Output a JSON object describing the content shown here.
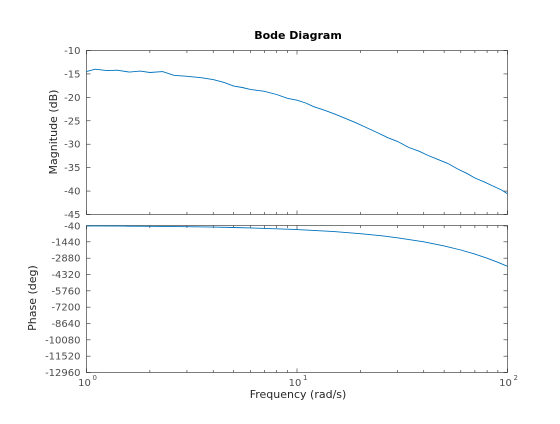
{
  "chart_data": {
    "type": "line",
    "title": "Bode Diagram",
    "xlabel": "Frequency  (rad/s)",
    "xscale": "log",
    "xlim": [
      1,
      100
    ],
    "x_ticks": [
      1,
      10,
      100
    ],
    "x_tick_labels": [
      [
        "10",
        "0"
      ],
      [
        "10",
        "1"
      ],
      [
        "10",
        "2"
      ]
    ],
    "line_color": "#0072bd",
    "grid": false,
    "subplots": [
      {
        "name": "magnitude",
        "ylabel": "Magnitude (dB)",
        "ylim": [
          -45,
          -10
        ],
        "yticks": [
          -10,
          -15,
          -20,
          -25,
          -30,
          -35,
          -40,
          -45
        ],
        "series": [
          {
            "x": [
              1,
              1.1,
              1.25,
              1.4,
              1.6,
              1.8,
              2,
              2.3,
              2.6,
              3,
              3.5,
              4,
              4.5,
              5,
              5.5,
              6,
              7,
              8,
              9,
              10,
              11,
              12,
              13,
              14,
              15,
              17,
              19,
              21,
              24,
              27,
              30,
              34,
              38,
              42,
              47,
              52,
              58,
              64,
              70,
              78,
              86,
              94,
              100
            ],
            "y": [
              -14.5,
              -14,
              -14.3,
              -14.2,
              -14.6,
              -14.4,
              -14.7,
              -14.5,
              -15.3,
              -15.5,
              -15.8,
              -16.2,
              -16.8,
              -17.6,
              -17.9,
              -18.3,
              -18.7,
              -19.4,
              -20.2,
              -20.6,
              -21.2,
              -22,
              -22.5,
              -23,
              -23.5,
              -24.5,
              -25.4,
              -26.3,
              -27.5,
              -28.6,
              -29.4,
              -30.7,
              -31.5,
              -32.4,
              -33.3,
              -34.1,
              -35.3,
              -36.2,
              -37.2,
              -38.1,
              -39,
              -39.8,
              -40.6
            ]
          }
        ]
      },
      {
        "name": "phase",
        "ylabel": "Phase (deg)",
        "ylim": [
          -12960,
          0
        ],
        "yticks": [
          -40,
          -1440,
          -2880,
          -4320,
          -5760,
          -7200,
          -8640,
          -10080,
          -11520,
          -12960
        ],
        "series": [
          {
            "x": [
              1,
              1.5,
              2,
              3,
              4,
              5,
              6,
              7,
              8,
              10,
              12,
              15,
              20,
              25,
              30,
              40,
              50,
              60,
              70,
              80,
              90,
              100
            ],
            "y": [
              -36,
              -54,
              -72,
              -108,
              -144,
              -180,
              -216,
              -252,
              -288,
              -360,
              -432,
              -540,
              -720,
              -900,
              -1080,
              -1440,
              -1800,
              -2160,
              -2520,
              -2880,
              -3240,
              -3600
            ]
          }
        ]
      }
    ]
  }
}
